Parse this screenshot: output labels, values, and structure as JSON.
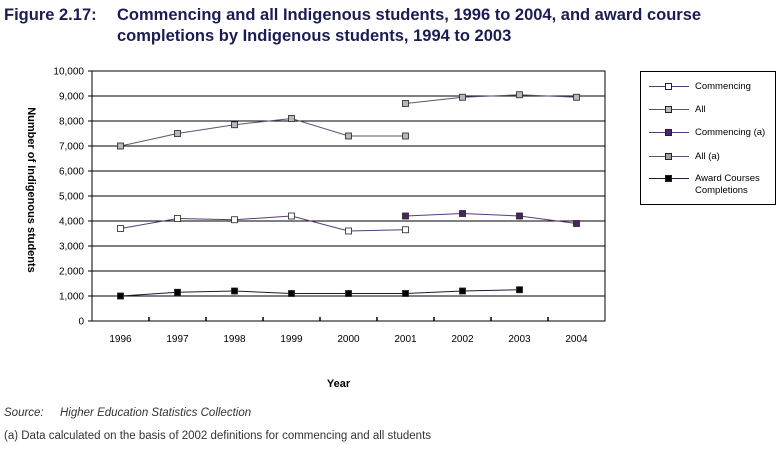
{
  "figure": {
    "label": "Figure 2.17:",
    "title": "Commencing and all Indigenous students, 1996 to 2004, and award course completions by Indigenous students, 1994 to 2003"
  },
  "source": {
    "label": "Source:",
    "text": "Higher Education Statistics Collection"
  },
  "note": "(a) Data calculated on the basis of 2002 definitions for commencing and all students",
  "chart_data": {
    "type": "line",
    "title": "Commencing and all Indigenous students, 1996 to 2004, and award course completions by Indigenous students, 1994 to 2003",
    "xlabel": "Year",
    "ylabel": "Number of Indigenous students",
    "ylim": [
      0,
      10000
    ],
    "yticks": [
      0,
      1000,
      2000,
      3000,
      4000,
      5000,
      6000,
      7000,
      8000,
      9000,
      10000
    ],
    "ytick_labels": [
      "0",
      "1,000",
      "2,000",
      "3,000",
      "4,000",
      "5,000",
      "6,000",
      "7,000",
      "8,000",
      "9,000",
      "10,000"
    ],
    "categories": [
      "1996",
      "1997",
      "1998",
      "1999",
      "2000",
      "2001",
      "2002",
      "2003",
      "2004"
    ],
    "grid": true,
    "legend_position": "right",
    "series": [
      {
        "name": "Commencing",
        "color": "#5a3b7a",
        "marker": "square-open",
        "values": [
          3700,
          4100,
          4050,
          4200,
          3600,
          3650,
          null,
          null,
          null
        ]
      },
      {
        "name": "All",
        "color": "#555577",
        "marker": "square-gray",
        "values": [
          7000,
          7500,
          7850,
          8100,
          7400,
          7400,
          null,
          null,
          null
        ]
      },
      {
        "name": "Commencing (a)",
        "color": "#5a3b7a",
        "marker": "square-purple",
        "values": [
          null,
          null,
          null,
          null,
          null,
          4200,
          4300,
          4200,
          3900
        ]
      },
      {
        "name": "All (a)",
        "color": "#555577",
        "marker": "square-gray",
        "values": [
          null,
          null,
          null,
          null,
          null,
          8700,
          8950,
          9050,
          8950
        ]
      },
      {
        "name": "Award Courses Completions",
        "color": "#1a1a3a",
        "marker": "square-black",
        "values": [
          1000,
          1150,
          1200,
          1100,
          1100,
          1100,
          1200,
          1250,
          null
        ]
      }
    ]
  }
}
